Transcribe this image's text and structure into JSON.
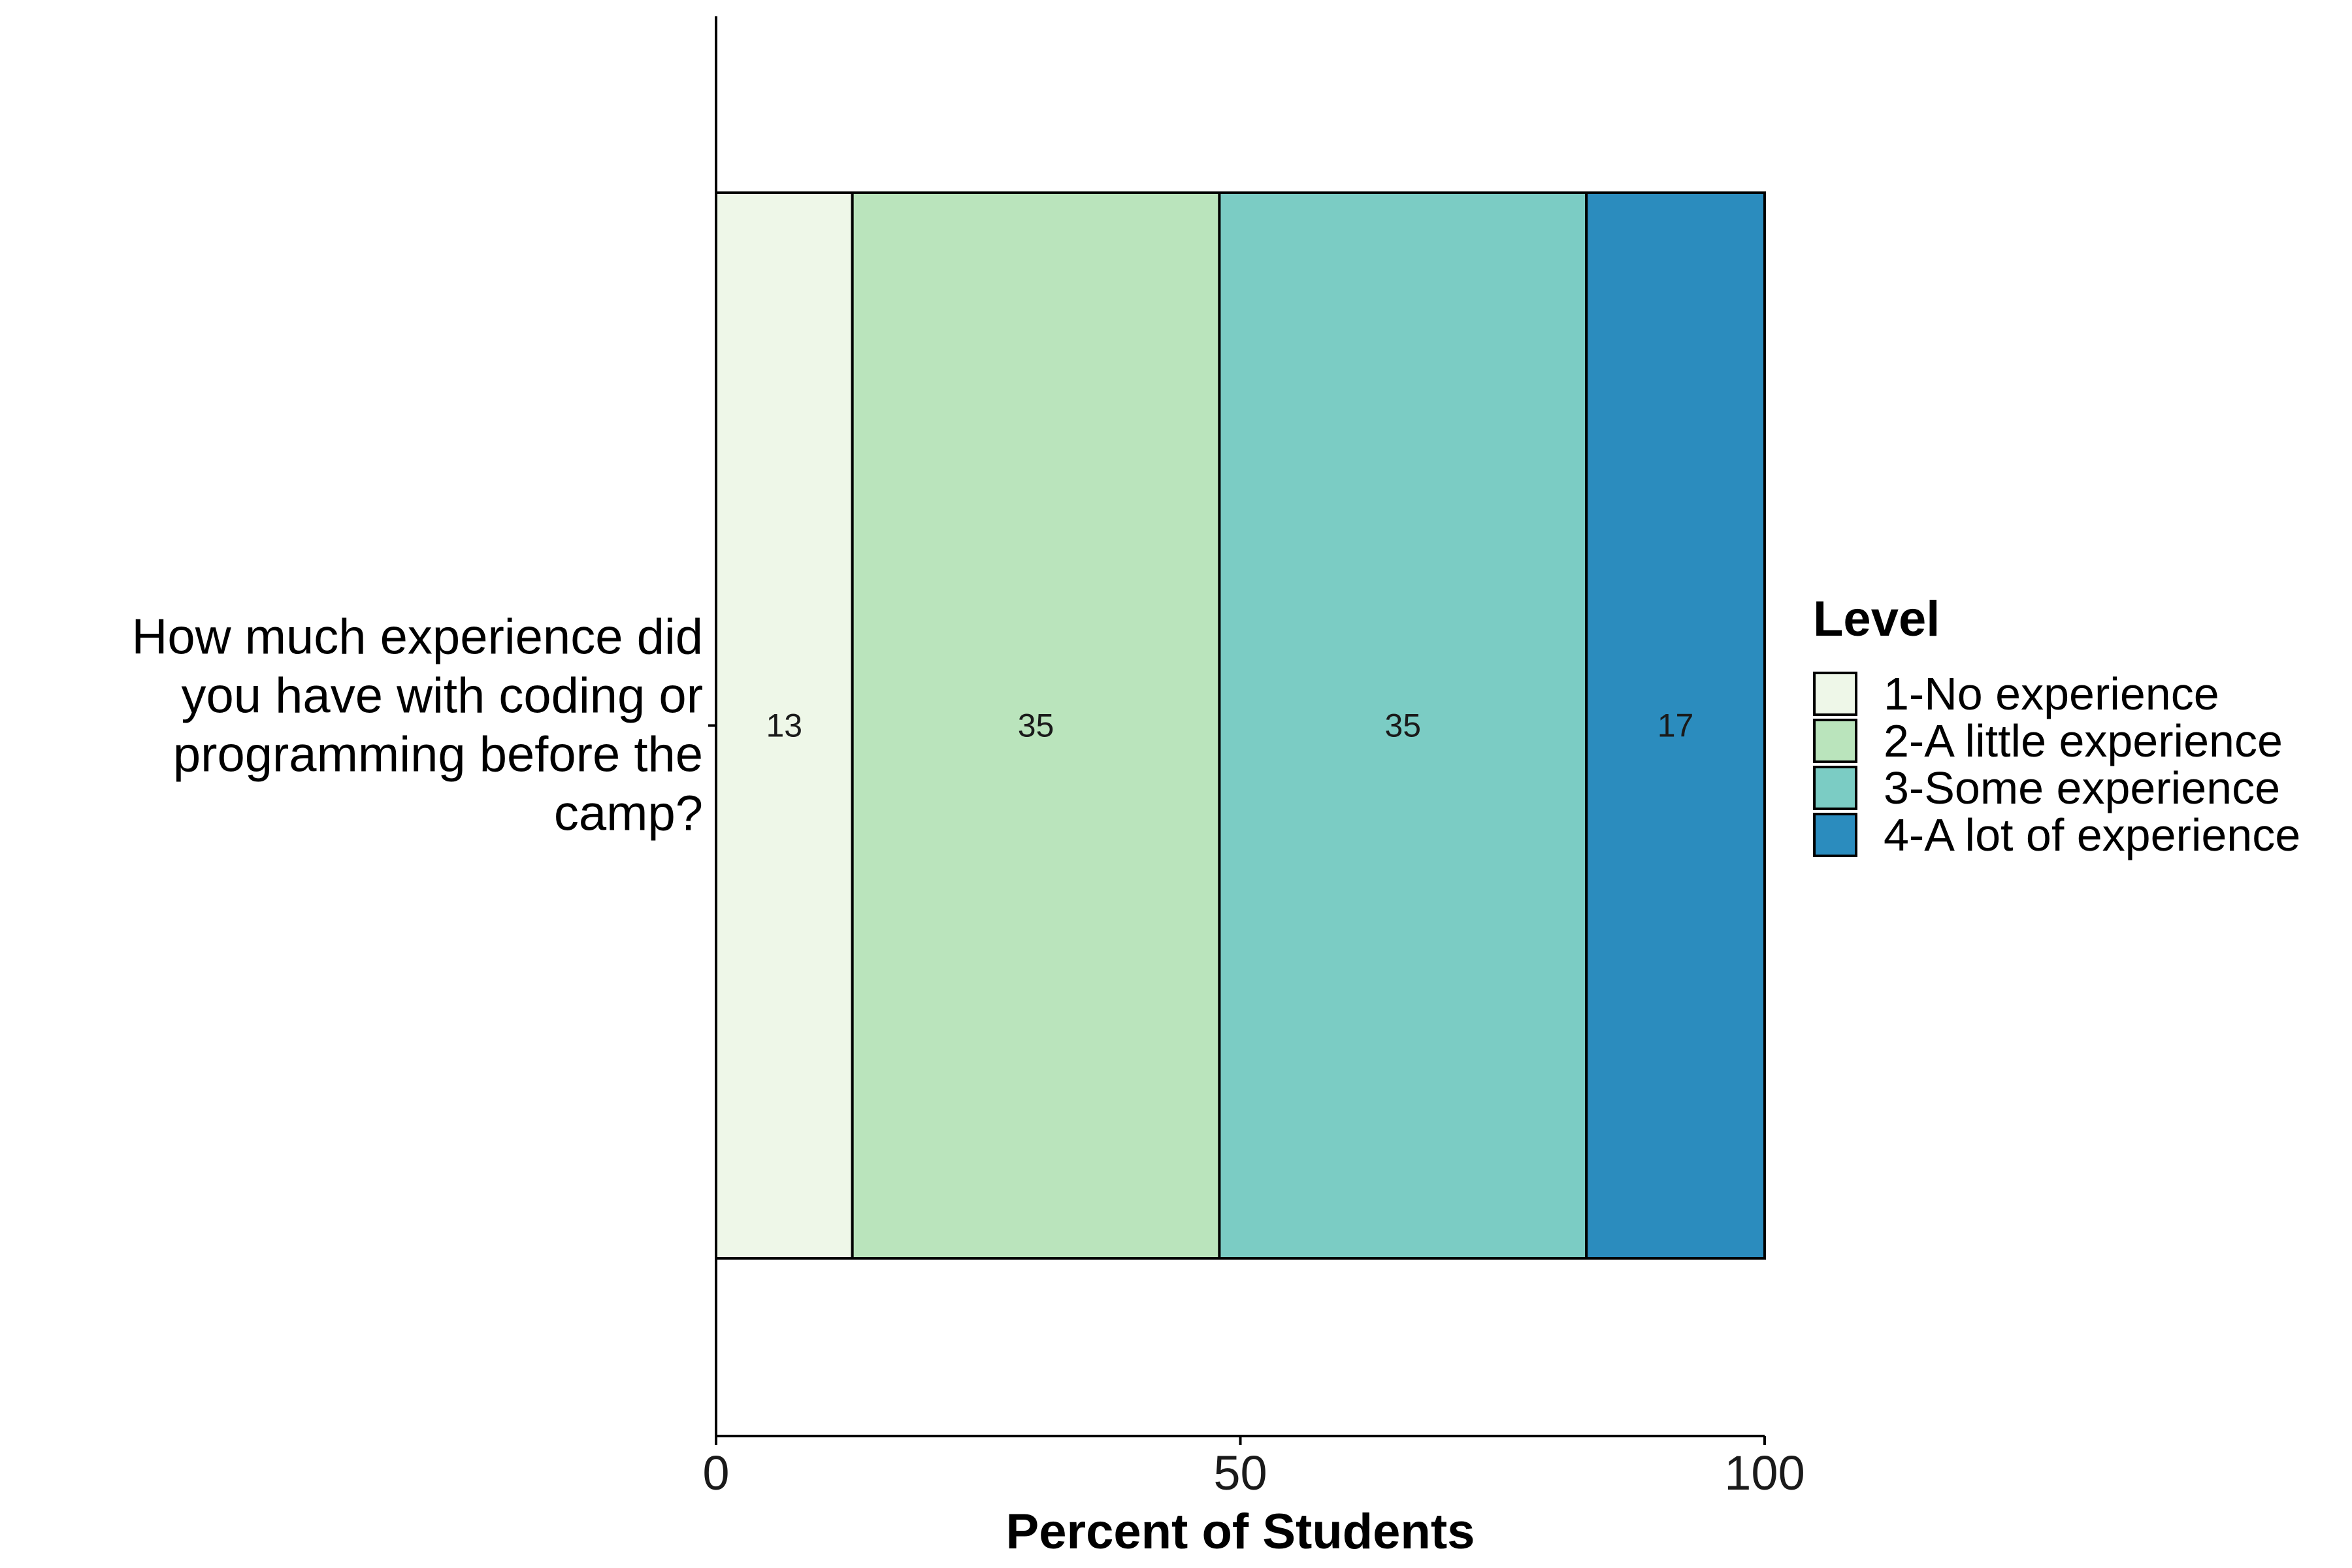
{
  "chart_data": {
    "type": "bar",
    "orientation": "horizontal",
    "stacked": true,
    "categories": [
      "How much experience did you have with coding or programming before the camp?"
    ],
    "category_label_lines": [
      "How much experience did",
      "you have with coding or",
      "programming before the",
      "camp?"
    ],
    "series": [
      {
        "name": "1-No experience",
        "values": [
          13
        ],
        "label": "13",
        "color": "#EEF7E8"
      },
      {
        "name": "2-A little experience",
        "values": [
          35
        ],
        "label": "35",
        "color": "#BAE4BC"
      },
      {
        "name": "3-Some experience",
        "values": [
          35
        ],
        "label": "35",
        "color": "#7BCCC4"
      },
      {
        "name": "4-A lot of experience",
        "values": [
          17
        ],
        "label": "17",
        "color": "#2B8CBE"
      }
    ],
    "xlabel": "Percent of Students",
    "ylabel": "",
    "xlim": [
      0,
      100
    ],
    "xticks": [
      0,
      50,
      100
    ],
    "xtick_labels": [
      "0",
      "50",
      "100"
    ],
    "legend": {
      "title": "Level",
      "position": "right"
    },
    "grid": false
  }
}
